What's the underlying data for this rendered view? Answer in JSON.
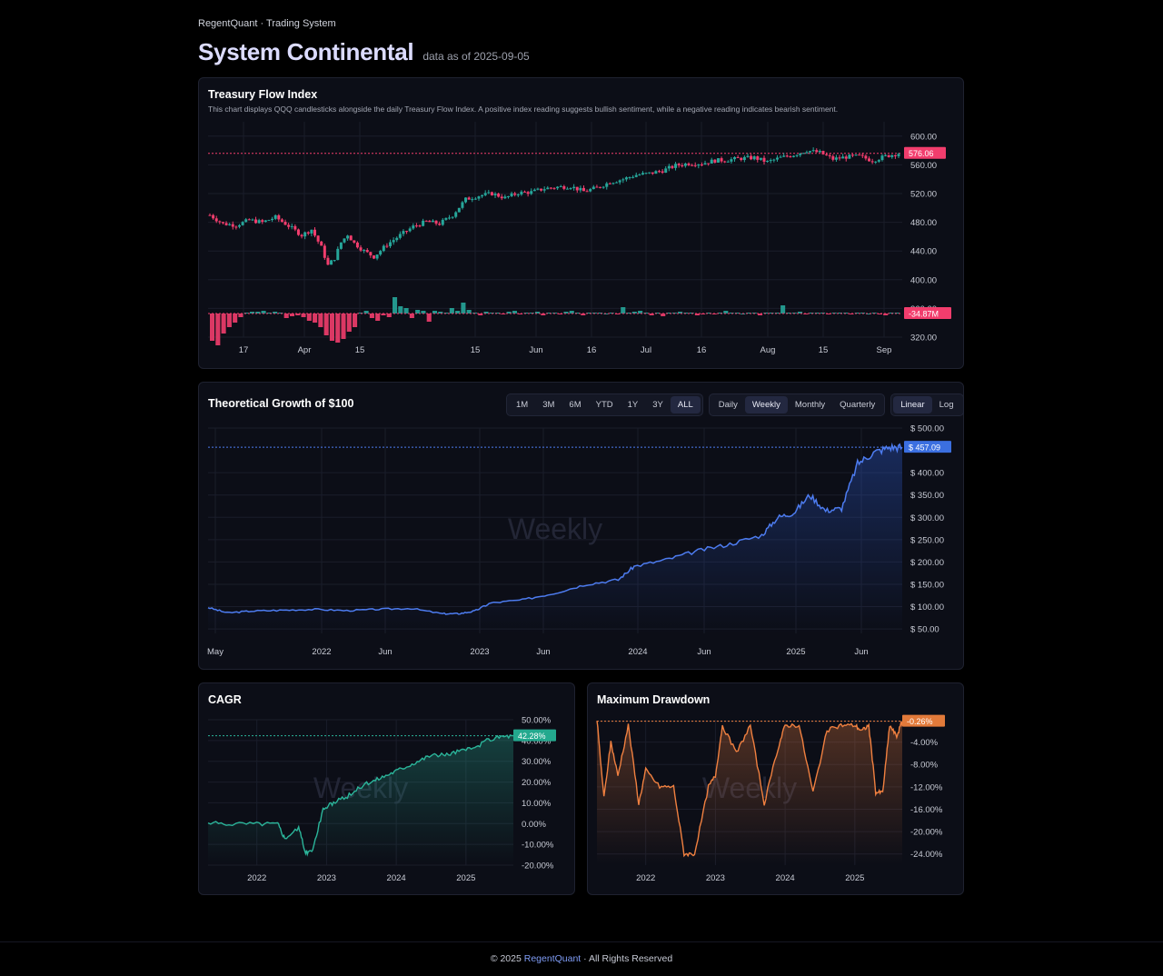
{
  "header": {
    "brand": "RegentQuant · Trading System",
    "title": "System Continental",
    "as_of": "data as of 2025-09-05"
  },
  "colors": {
    "up": "#26a69a",
    "down": "#f23d6d",
    "growth": "#4d7cf0",
    "cagr": "#2bb59a",
    "drawdown": "#f08040"
  },
  "treasury": {
    "title": "Treasury Flow Index",
    "description": "This chart displays QQQ candlesticks alongside the daily Treasury Flow Index. A positive index reading suggests bullish sentiment, while a negative reading indicates bearish sentiment.",
    "price_tag": "576.06",
    "flow_tag": "-34.87M"
  },
  "growth": {
    "title": "Theoretical Growth of $100",
    "watermark": "Weekly",
    "value_tag": "$ 457.09",
    "ranges": [
      "1M",
      "3M",
      "6M",
      "YTD",
      "1Y",
      "3Y",
      "ALL"
    ],
    "active_range": "ALL",
    "frequencies": [
      "Daily",
      "Weekly",
      "Monthly",
      "Quarterly"
    ],
    "active_frequency": "Weekly",
    "scales": [
      "Linear",
      "Log"
    ],
    "active_scale": "Linear"
  },
  "cagr": {
    "title": "CAGR",
    "watermark": "Weekly",
    "value_tag": "42.28%"
  },
  "drawdown": {
    "title": "Maximum Drawdown",
    "watermark": "Weekly",
    "value_tag": "-0.26%"
  },
  "footer": {
    "prefix": "© 2025 ",
    "brand": "RegentQuant",
    "suffix": " · All Rights Reserved"
  },
  "chart_data": [
    {
      "type": "candlestick",
      "title": "Treasury Flow Index",
      "x_ticks": [
        "17",
        "Apr",
        "15",
        "15",
        "Jun",
        "16",
        "Jul",
        "16",
        "Aug",
        "15",
        "Sep"
      ],
      "y_ticks": [
        "600.00",
        "560.00",
        "520.00",
        "480.00",
        "440.00",
        "400.00",
        "360.00",
        "320.00"
      ],
      "ylim": [
        320,
        620
      ],
      "last_price": 576.06,
      "price_path": [
        [
          0,
          490
        ],
        [
          4,
          478
        ],
        [
          8,
          476
        ],
        [
          12,
          483
        ],
        [
          16,
          480
        ],
        [
          20,
          487
        ],
        [
          24,
          475
        ],
        [
          28,
          462
        ],
        [
          31,
          470
        ],
        [
          34,
          445
        ],
        [
          36,
          420
        ],
        [
          38,
          430
        ],
        [
          40,
          452
        ],
        [
          42,
          463
        ],
        [
          44,
          451
        ],
        [
          47,
          440
        ],
        [
          50,
          432
        ],
        [
          54,
          449
        ],
        [
          58,
          462
        ],
        [
          62,
          474
        ],
        [
          66,
          481
        ],
        [
          70,
          478
        ],
        [
          74,
          490
        ],
        [
          78,
          512
        ],
        [
          82,
          517
        ],
        [
          86,
          520
        ],
        [
          90,
          514
        ],
        [
          94,
          521
        ],
        [
          98,
          522
        ],
        [
          102,
          527
        ],
        [
          106,
          529
        ],
        [
          110,
          530
        ],
        [
          114,
          523
        ],
        [
          118,
          528
        ],
        [
          122,
          536
        ],
        [
          126,
          540
        ],
        [
          130,
          546
        ],
        [
          134,
          548
        ],
        [
          138,
          552
        ],
        [
          142,
          559
        ],
        [
          146,
          562
        ],
        [
          150,
          562
        ],
        [
          154,
          566
        ],
        [
          158,
          567
        ],
        [
          162,
          569
        ],
        [
          166,
          570
        ],
        [
          170,
          564
        ],
        [
          174,
          570
        ],
        [
          178,
          574
        ],
        [
          182,
          580
        ],
        [
          186,
          577
        ],
        [
          190,
          568
        ],
        [
          194,
          571
        ],
        [
          198,
          572
        ],
        [
          202,
          566
        ],
        [
          206,
          572
        ],
        [
          210,
          576
        ]
      ],
      "flow_series": {
        "name": "Treasury Flow Index",
        "last_value_label": "-34.87M",
        "values": [
          -30,
          -35,
          -22,
          -15,
          -10,
          -4,
          1,
          2,
          2,
          3,
          1,
          2,
          1,
          -5,
          -3,
          -2,
          -4,
          -8,
          -10,
          -15,
          -24,
          -30,
          -32,
          -28,
          -20,
          -15,
          1,
          3,
          -5,
          -8,
          -2,
          -4,
          18,
          8,
          6,
          -5,
          4,
          3,
          -9,
          3,
          2,
          1,
          6,
          3,
          12,
          4,
          1,
          -2,
          2,
          1,
          1,
          -1,
          2,
          3,
          -1,
          1,
          1,
          2,
          -2,
          1,
          1,
          -1,
          2,
          3,
          1,
          -2,
          1,
          1,
          1,
          0,
          1,
          -1,
          7,
          1,
          2,
          3,
          1,
          -2,
          1,
          -3,
          1,
          1,
          2,
          1,
          1,
          -2,
          -1,
          1,
          -1,
          1,
          3,
          1,
          1,
          0,
          1,
          1,
          -2,
          1,
          1,
          1,
          9,
          1,
          1,
          2,
          -1,
          1,
          1,
          1,
          -1,
          1,
          1,
          1,
          -1,
          1,
          1,
          0,
          1,
          -1,
          -2,
          1,
          1
        ]
      }
    },
    {
      "type": "line",
      "title": "Theoretical Growth of $100",
      "x_ticks": [
        "May",
        "2022",
        "Jun",
        "2023",
        "Jun",
        "2024",
        "Jun",
        "2025",
        "Jun"
      ],
      "y_ticks": [
        "$ 500.00",
        "$ 400.00",
        "$ 350.00",
        "$ 300.00",
        "$ 250.00",
        "$ 200.00",
        "$ 150.00",
        "$ 100.00",
        "$ 50.00"
      ],
      "ylim": [
        40,
        500
      ],
      "x": [
        2021.33,
        2021.45,
        2021.6,
        2021.8,
        2022.0,
        2022.2,
        2022.4,
        2022.6,
        2022.8,
        2022.9,
        2023.0,
        2023.1,
        2023.3,
        2023.5,
        2023.7,
        2023.9,
        2024.0,
        2024.2,
        2024.4,
        2024.6,
        2024.8,
        2024.9,
        2025.0,
        2025.1,
        2025.2,
        2025.3,
        2025.4,
        2025.5,
        2025.6,
        2025.68
      ],
      "values": [
        98,
        86,
        90,
        92,
        94,
        91,
        94,
        96,
        84,
        84,
        90,
        108,
        115,
        130,
        150,
        160,
        190,
        205,
        225,
        240,
        260,
        300,
        310,
        350,
        315,
        320,
        420,
        445,
        457,
        457.09
      ]
    },
    {
      "type": "area",
      "title": "CAGR",
      "x_ticks": [
        "2022",
        "2023",
        "2024",
        "2025"
      ],
      "y_ticks": [
        "50.00%",
        "40.00%",
        "30.00%",
        "20.00%",
        "10.00%",
        "0.00%",
        "-10.00%",
        "-20.00%"
      ],
      "ylim": [
        -20,
        50
      ],
      "x": [
        2021.3,
        2021.6,
        2022.0,
        2022.3,
        2022.4,
        2022.6,
        2022.7,
        2022.8,
        2022.95,
        2023.1,
        2023.3,
        2023.5,
        2023.7,
        2023.9,
        2024.1,
        2024.3,
        2024.5,
        2024.7,
        2024.9,
        2025.1,
        2025.3,
        2025.5,
        2025.68
      ],
      "values": [
        0,
        0,
        0,
        0,
        -7,
        -2,
        -14,
        -13,
        7,
        10,
        13,
        18,
        21,
        24,
        27,
        30,
        33,
        33,
        35,
        36,
        40,
        42,
        42.28
      ]
    },
    {
      "type": "area",
      "title": "Maximum Drawdown",
      "x_ticks": [
        "2022",
        "2023",
        "2024",
        "2025"
      ],
      "y_ticks": [
        "-0.26%",
        "-4.00%",
        "-8.00%",
        "-12.00%",
        "-16.00%",
        "-20.00%",
        "-24.00%"
      ],
      "ylim": [
        -26,
        0
      ],
      "x": [
        2021.3,
        2021.4,
        2021.5,
        2021.6,
        2021.75,
        2021.9,
        2022.0,
        2022.2,
        2022.4,
        2022.55,
        2022.7,
        2022.9,
        2023.0,
        2023.1,
        2023.3,
        2023.5,
        2023.7,
        2023.9,
        2024.0,
        2024.2,
        2024.4,
        2024.6,
        2024.8,
        2025.0,
        2025.1,
        2025.2,
        2025.3,
        2025.4,
        2025.5,
        2025.6,
        2025.68
      ],
      "values": [
        0,
        -14,
        -4,
        -10,
        -1,
        -15,
        -9,
        -12,
        -12,
        -24,
        -24,
        -12,
        -10,
        -1,
        -6,
        -1,
        -15,
        -5,
        -1,
        -1,
        -13,
        -2,
        -1,
        -1,
        -2,
        -1,
        -13,
        -13,
        -1,
        -3,
        -0.26
      ]
    }
  ]
}
